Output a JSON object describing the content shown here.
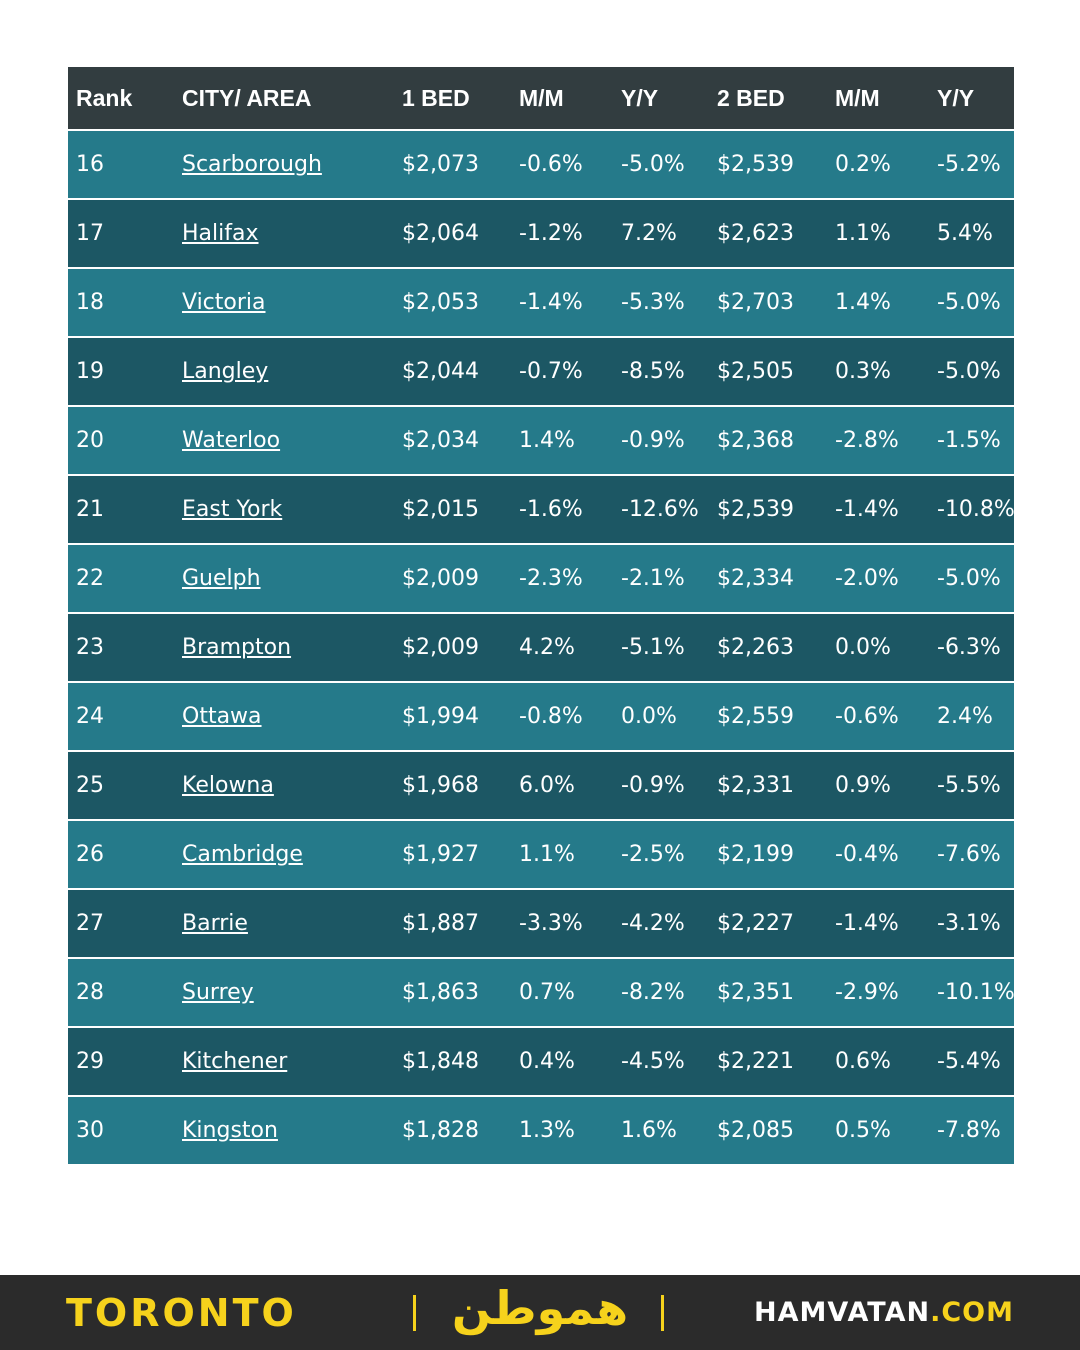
{
  "table": {
    "header": [
      "Rank",
      "CITY/ AREA",
      "1 BED",
      "M/M",
      "Y/Y",
      "2 BED",
      "M/M",
      "Y/Y"
    ],
    "rows": [
      [
        "16",
        "Scarborough",
        "$2,073",
        "-0.6%",
        "-5.0%",
        "$2,539",
        "0.2%",
        "-5.2%"
      ],
      [
        "17",
        "Halifax",
        "$2,064",
        "-1.2%",
        "7.2%",
        "$2,623",
        "1.1%",
        "5.4%"
      ],
      [
        "18",
        "Victoria",
        "$2,053",
        "-1.4%",
        "-5.3%",
        "$2,703",
        "1.4%",
        "-5.0%"
      ],
      [
        "19",
        "Langley",
        "$2,044",
        "-0.7%",
        "-8.5%",
        "$2,505",
        "0.3%",
        "-5.0%"
      ],
      [
        "20",
        "Waterloo",
        "$2,034",
        "1.4%",
        "-0.9%",
        "$2,368",
        "-2.8%",
        "-1.5%"
      ],
      [
        "21",
        "East York",
        "$2,015",
        "-1.6%",
        "-12.6%",
        "$2,539",
        "-1.4%",
        "-10.8%"
      ],
      [
        "22",
        "Guelph",
        "$2,009",
        "-2.3%",
        "-2.1%",
        "$2,334",
        "-2.0%",
        "-5.0%"
      ],
      [
        "23",
        "Brampton",
        "$2,009",
        "4.2%",
        "-5.1%",
        "$2,263",
        "0.0%",
        "-6.3%"
      ],
      [
        "24",
        "Ottawa",
        "$1,994",
        "-0.8%",
        "0.0%",
        "$2,559",
        "-0.6%",
        "2.4%"
      ],
      [
        "25",
        "Kelowna",
        "$1,968",
        "6.0%",
        "-0.9%",
        "$2,331",
        "0.9%",
        "-5.5%"
      ],
      [
        "26",
        "Cambridge",
        "$1,927",
        "1.1%",
        "-2.5%",
        "$2,199",
        "-0.4%",
        "-7.6%"
      ],
      [
        "27",
        "Barrie",
        "$1,887",
        "-3.3%",
        "-4.2%",
        "$2,227",
        "-1.4%",
        "-3.1%"
      ],
      [
        "28",
        "Surrey",
        "$1,863",
        "0.7%",
        "-8.2%",
        "$2,351",
        "-2.9%",
        "-10.1%"
      ],
      [
        "29",
        "Kitchener",
        "$1,848",
        "0.4%",
        "-4.5%",
        "$2,221",
        "0.6%",
        "-5.4%"
      ],
      [
        "30",
        "Kingston",
        "$1,828",
        "1.3%",
        "1.6%",
        "$2,085",
        "0.5%",
        "-7.8%"
      ]
    ]
  },
  "footer": {
    "city": "TORONTO",
    "logo": "هموطن",
    "site_name": "HAMVATAN",
    "site_tld": ".COM"
  }
}
